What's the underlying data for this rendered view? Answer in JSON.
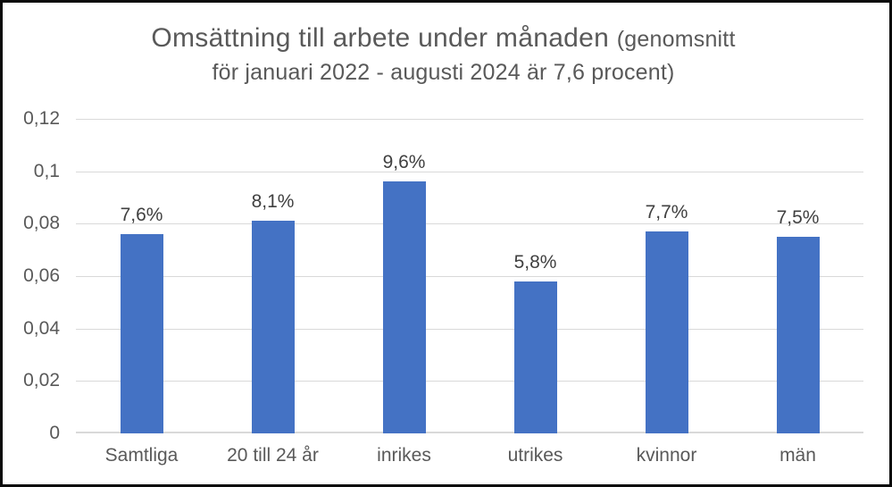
{
  "window": {
    "background": "#ffffff",
    "border_color": "#0a0a0a"
  },
  "chart_data": {
    "type": "bar",
    "title_main": "Omsättning till arbete under månaden",
    "title_paren": "(genomsnitt",
    "title_line2": "för januari 2022 - augusti 2024 är 7,6 procent)",
    "categories": [
      "Samtliga",
      "20 till 24 år",
      "inrikes",
      "utrikes",
      "kvinnor",
      "män"
    ],
    "values": [
      0.076,
      0.081,
      0.096,
      0.058,
      0.077,
      0.075
    ],
    "data_labels": [
      "7,6%",
      "8,1%",
      "9,6%",
      "5,8%",
      "7,7%",
      "7,5%"
    ],
    "y_ticks": [
      "0,12",
      "0,1",
      "0,08",
      "0,06",
      "0,04",
      "0,02",
      "0"
    ],
    "y_tick_values": [
      0.12,
      0.1,
      0.08,
      0.06,
      0.04,
      0.02,
      0
    ],
    "ylim": [
      0,
      0.12
    ],
    "xlabel": "",
    "ylabel": "",
    "legend": "none",
    "grid": true,
    "bar_color": "#4472C4",
    "gridline_color": "#D9D9D9",
    "axis_label_color": "#595959",
    "data_label_color": "#404040",
    "title_color": "#595959"
  }
}
